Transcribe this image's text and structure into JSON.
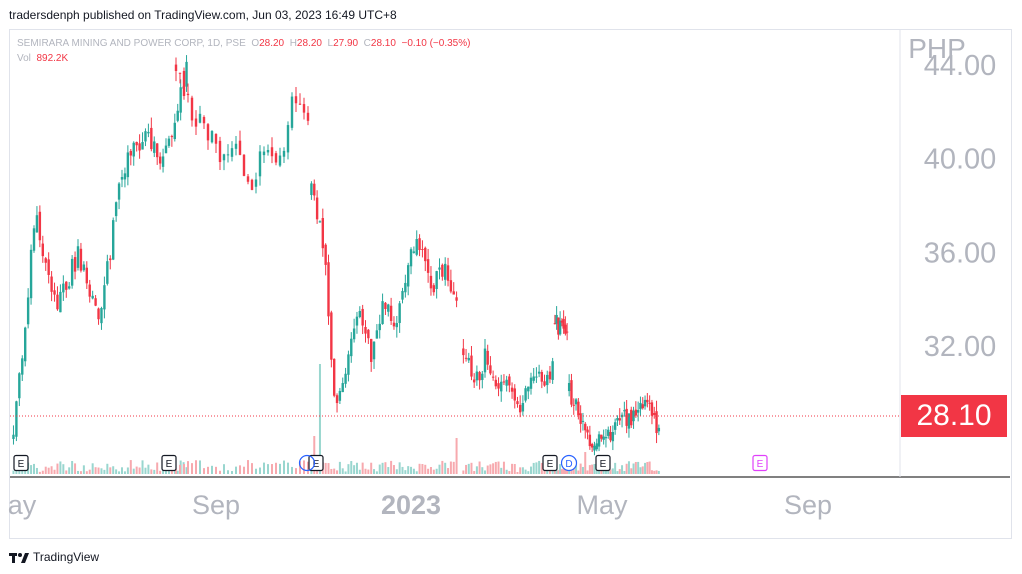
{
  "header": {
    "publisher": "tradersdenph published on TradingView.com, Jun 03, 2023 16:49 UTC+8"
  },
  "legend": {
    "symbol": "SEMIRARA MINING AND POWER CORP, 1D, PSE",
    "o_label": "O",
    "o": "28.20",
    "h_label": "H",
    "h": "28.20",
    "l_label": "L",
    "l": "27.90",
    "c_label": "C",
    "c": "28.10",
    "change": "−0.10 (−0.35%)",
    "vol_label": "Vol",
    "vol": "892.2K"
  },
  "price_badge": "28.10",
  "footer": {
    "brand": "TradingView"
  },
  "colors": {
    "up": "#26a69a",
    "down": "#f23645",
    "axis_text": "#b2b5be",
    "grid_line": "#d1d4dc"
  },
  "chart_data": {
    "type": "candlestick",
    "currency": "PHP",
    "y_ticks": [
      "32.00",
      "36.00",
      "40.00",
      "44.00"
    ],
    "ylim": [
      26.7,
      45.5
    ],
    "x_tick_labels": [
      "ay",
      "Sep",
      "2023",
      "May",
      "Sep"
    ],
    "last_close": 28.1,
    "segments": [
      {
        "days": 60,
        "points": [
          28.0,
          37.5,
          33.5,
          36.0,
          33.0,
          39.5,
          41.0,
          40.0,
          44.0
        ]
      },
      {
        "days": 34,
        "points": [
          44.0,
          42.0,
          41.5,
          40.0,
          41.0,
          38.5,
          40.5,
          39.5,
          42.5,
          41.2
        ]
      },
      {
        "days": 52,
        "points": [
          38.5,
          36.5,
          29.0,
          31.5,
          33.5,
          31.5,
          34.0,
          32.5,
          35.5,
          36.5,
          34.5,
          35.5,
          33.5
        ]
      },
      {
        "days": 34,
        "points": [
          32.0,
          30.5,
          31.5,
          30.0,
          30.5,
          29.0,
          30.5,
          30.5,
          31.0
        ]
      },
      {
        "days": 8,
        "points": [
          33.0,
          32.8,
          32.2
        ]
      },
      {
        "days": 40,
        "points": [
          30.0,
          29.0,
          28.0,
          27.8,
          28.3,
          29.0,
          29.0,
          29.5,
          28.1
        ]
      }
    ],
    "events": [
      {
        "type": "earnings",
        "label": "E"
      },
      {
        "type": "earnings",
        "label": "E"
      },
      {
        "type": "earnings",
        "label": "E"
      },
      {
        "type": "earnings",
        "label": "E"
      },
      {
        "type": "dividend",
        "label": "D"
      },
      {
        "type": "earnings",
        "label": "E"
      },
      {
        "type": "earnings-upcoming",
        "label": "E"
      }
    ]
  }
}
